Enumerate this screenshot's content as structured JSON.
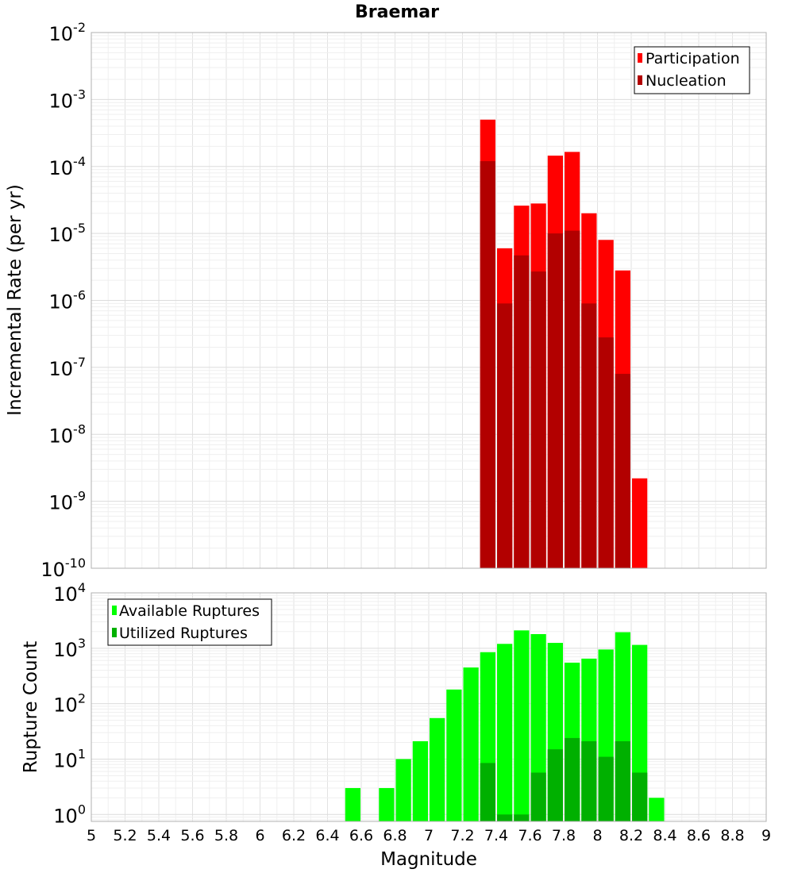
{
  "chart_data": [
    {
      "type": "bar",
      "title": "Braemar",
      "ylabel": "Incremental Rate (per yr)",
      "xlabel": "",
      "yscale": "log",
      "ylim": [
        1e-10,
        0.01
      ],
      "xlim": [
        5,
        9
      ],
      "bar_width": 0.1,
      "y_ticks": [
        {
          "base": "10",
          "exp": "-2"
        },
        {
          "base": "10",
          "exp": "-3"
        },
        {
          "base": "10",
          "exp": "-4"
        },
        {
          "base": "10",
          "exp": "-5"
        },
        {
          "base": "10",
          "exp": "-6"
        },
        {
          "base": "10",
          "exp": "-7"
        },
        {
          "base": "10",
          "exp": "-8"
        },
        {
          "base": "10",
          "exp": "-9"
        },
        {
          "base": "10",
          "exp": "-10"
        }
      ],
      "legend_position": "top-right",
      "series": [
        {
          "name": "Participation",
          "color": "#ff0000",
          "x": [
            7.35,
            7.45,
            7.55,
            7.65,
            7.75,
            7.85,
            7.95,
            8.05,
            8.15,
            8.25
          ],
          "values": [
            0.0005,
            6e-06,
            2.6e-05,
            2.8e-05,
            0.000145,
            0.000165,
            2e-05,
            8e-06,
            2.8e-06,
            2.2e-09
          ]
        },
        {
          "name": "Nucleation",
          "color": "#b20000",
          "x": [
            7.35,
            7.45,
            7.55,
            7.65,
            7.75,
            7.85,
            7.95,
            8.05,
            8.15
          ],
          "values": [
            0.00012,
            9e-07,
            4.7e-06,
            2.7e-06,
            1e-05,
            1.1e-05,
            9e-07,
            2.8e-07,
            8e-08
          ]
        }
      ]
    },
    {
      "type": "bar",
      "title": "",
      "ylabel": "Rupture Count",
      "xlabel": "Magnitude",
      "yscale": "log",
      "ylim": [
        0.75,
        10000
      ],
      "xlim": [
        5,
        9
      ],
      "bar_width": 0.1,
      "y_ticks": [
        {
          "base": "10",
          "exp": "4"
        },
        {
          "base": "10",
          "exp": "3"
        },
        {
          "base": "10",
          "exp": "2"
        },
        {
          "base": "10",
          "exp": "1"
        },
        {
          "base": "10",
          "exp": "0"
        }
      ],
      "x_ticks": [
        "5",
        "5.2",
        "5.4",
        "5.6",
        "5.8",
        "6",
        "6.2",
        "6.4",
        "6.6",
        "6.8",
        "7",
        "7.2",
        "7.4",
        "7.6",
        "7.8",
        "8",
        "8.2",
        "8.4",
        "8.6",
        "8.8",
        "9"
      ],
      "legend_position": "top-left",
      "series": [
        {
          "name": "Available Ruptures",
          "color": "#00ff00",
          "x": [
            6.55,
            6.75,
            6.85,
            6.95,
            7.05,
            7.15,
            7.25,
            7.35,
            7.45,
            7.55,
            7.65,
            7.75,
            7.85,
            7.95,
            8.05,
            8.15,
            8.25,
            8.35
          ],
          "values": [
            3,
            3,
            10,
            21,
            55,
            180,
            450,
            850,
            1200,
            2100,
            1800,
            1250,
            550,
            650,
            950,
            1950,
            1150,
            2
          ]
        },
        {
          "name": "Utilized Ruptures",
          "color": "#00b000",
          "x": [
            7.35,
            7.45,
            7.55,
            7.65,
            7.75,
            7.85,
            7.95,
            8.05,
            8.15,
            8.25
          ],
          "values": [
            8.5,
            1,
            1,
            5.7,
            15,
            24,
            21,
            11,
            21,
            5.7
          ]
        }
      ]
    }
  ]
}
